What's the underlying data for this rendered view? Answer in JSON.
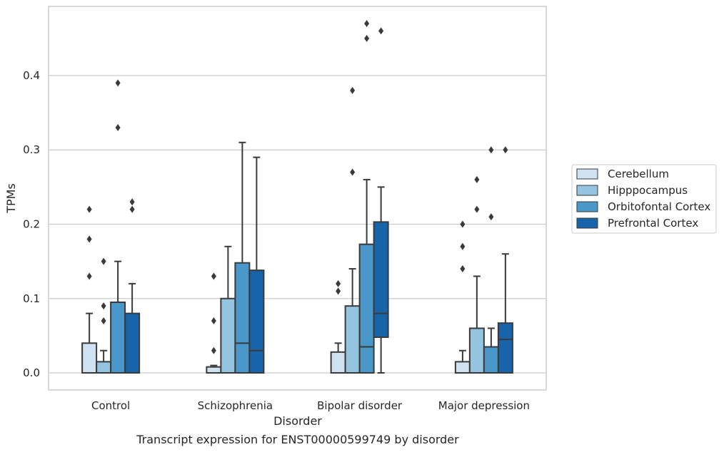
{
  "chart_data": {
    "type": "boxplot",
    "title": "",
    "xlabel": "Disorder",
    "ylabel": "TPMs",
    "caption": "Transcript expression for ENST00000599749 by disorder",
    "categories": [
      "Control",
      "Schizophrenia",
      "Bipolar disorder",
      "Major depression"
    ],
    "ylim": [
      -0.023,
      0.493
    ],
    "yticks": [
      0.0,
      0.1,
      0.2,
      0.3,
      0.4
    ],
    "ytick_labels": [
      "0.0",
      "0.1",
      "0.2",
      "0.3",
      "0.4"
    ],
    "grid": true,
    "legend_position": "right",
    "series": [
      {
        "name": "Cerebellum",
        "color": "#d0e1f2",
        "boxes": [
          {
            "q1": 0.0,
            "median": 0.0,
            "q3": 0.04,
            "whisker_low": 0.0,
            "whisker_high": 0.08,
            "outliers": [
              0.13,
              0.18,
              0.22
            ]
          },
          {
            "q1": 0.0,
            "median": 0.0,
            "q3": 0.008,
            "whisker_low": 0.0,
            "whisker_high": 0.01,
            "outliers": [
              0.03,
              0.07,
              0.13
            ]
          },
          {
            "q1": 0.0,
            "median": 0.0,
            "q3": 0.028,
            "whisker_low": 0.0,
            "whisker_high": 0.04,
            "outliers": [
              0.11,
              0.12
            ]
          },
          {
            "q1": 0.0,
            "median": 0.0,
            "q3": 0.015,
            "whisker_low": 0.0,
            "whisker_high": 0.03,
            "outliers": [
              0.14,
              0.17,
              0.2
            ]
          }
        ]
      },
      {
        "name": "Hipppocampus",
        "color": "#94c4df",
        "boxes": [
          {
            "q1": 0.0,
            "median": 0.0,
            "q3": 0.015,
            "whisker_low": 0.0,
            "whisker_high": 0.03,
            "outliers": [
              0.07,
              0.09,
              0.15
            ]
          },
          {
            "q1": 0.0,
            "median": 0.0,
            "q3": 0.1,
            "whisker_low": 0.0,
            "whisker_high": 0.17,
            "outliers": []
          },
          {
            "q1": 0.0,
            "median": 0.0,
            "q3": 0.09,
            "whisker_low": 0.0,
            "whisker_high": 0.14,
            "outliers": [
              0.27,
              0.38
            ]
          },
          {
            "q1": 0.0,
            "median": 0.0,
            "q3": 0.06,
            "whisker_low": 0.0,
            "whisker_high": 0.13,
            "outliers": [
              0.22,
              0.26
            ]
          }
        ]
      },
      {
        "name": "Orbitofontal Cortex",
        "color": "#4a98c9",
        "boxes": [
          {
            "q1": 0.0,
            "median": 0.0,
            "q3": 0.095,
            "whisker_low": 0.0,
            "whisker_high": 0.15,
            "outliers": [
              0.33,
              0.39
            ]
          },
          {
            "q1": 0.0,
            "median": 0.04,
            "q3": 0.148,
            "whisker_low": 0.0,
            "whisker_high": 0.31,
            "outliers": []
          },
          {
            "q1": 0.0,
            "median": 0.035,
            "q3": 0.173,
            "whisker_low": 0.0,
            "whisker_high": 0.26,
            "outliers": [
              0.45,
              0.47
            ]
          },
          {
            "q1": 0.0,
            "median": 0.0,
            "q3": 0.035,
            "whisker_low": 0.0,
            "whisker_high": 0.06,
            "outliers": [
              0.21,
              0.3
            ]
          }
        ]
      },
      {
        "name": "Prefrontal Cortex",
        "color": "#1764ab",
        "boxes": [
          {
            "q1": 0.0,
            "median": 0.0,
            "q3": 0.08,
            "whisker_low": 0.0,
            "whisker_high": 0.12,
            "outliers": [
              0.22,
              0.23
            ]
          },
          {
            "q1": 0.0,
            "median": 0.03,
            "q3": 0.138,
            "whisker_low": 0.0,
            "whisker_high": 0.29,
            "outliers": []
          },
          {
            "q1": 0.048,
            "median": 0.08,
            "q3": 0.203,
            "whisker_low": 0.0,
            "whisker_high": 0.25,
            "outliers": [
              0.46
            ]
          },
          {
            "q1": 0.0,
            "median": 0.045,
            "q3": 0.067,
            "whisker_low": 0.0,
            "whisker_high": 0.16,
            "outliers": [
              0.3
            ]
          }
        ]
      }
    ]
  }
}
